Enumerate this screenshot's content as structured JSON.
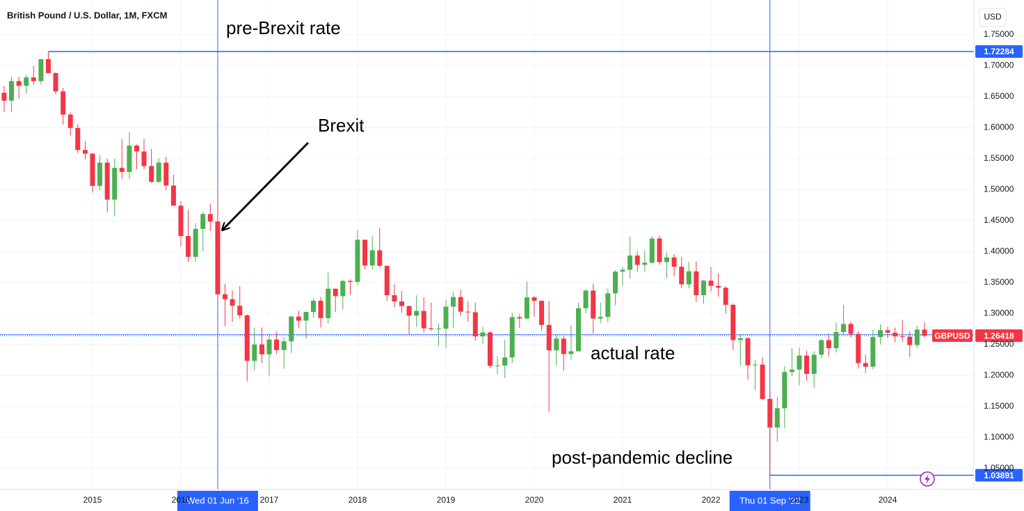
{
  "chart_data": {
    "type": "candlestick",
    "title": "British Pound / U.S. Dollar, 1M, FXCM",
    "currency": "USD",
    "symbol": "GBPUSD",
    "up_color": "#4caf50",
    "down_color": "#f23645",
    "line_color": "#2962ff",
    "grid": true,
    "xlim": [
      2013.953,
      2024.976
    ],
    "ylim": [
      1.016,
      1.806
    ],
    "xticks": [
      2015,
      2016,
      2017,
      2018,
      2019,
      2020,
      2021,
      2022,
      2023,
      2024
    ],
    "yticks": [
      {
        "value": 1.05,
        "label": "1.05000"
      },
      {
        "value": 1.1,
        "label": "1.10000"
      },
      {
        "value": 1.15,
        "label": "1.15000"
      },
      {
        "value": 1.2,
        "label": "1.20000"
      },
      {
        "value": 1.25,
        "label": "1.25000"
      },
      {
        "value": 1.3,
        "label": "1.30000"
      },
      {
        "value": 1.35,
        "label": "1.35000"
      },
      {
        "value": 1.4,
        "label": "1.40000"
      },
      {
        "value": 1.45,
        "label": "1.45000"
      },
      {
        "value": 1.5,
        "label": "1.50000"
      },
      {
        "value": 1.55,
        "label": "1.55000"
      },
      {
        "value": 1.6,
        "label": "1.60000"
      },
      {
        "value": 1.65,
        "label": "1.65000"
      },
      {
        "value": 1.7,
        "label": "1.70000"
      },
      {
        "value": 1.75,
        "label": "1.75000"
      }
    ],
    "x": [
      2014,
      2014.083,
      2014.167,
      2014.25,
      2014.333,
      2014.417,
      2014.5,
      2014.583,
      2014.667,
      2014.75,
      2014.833,
      2014.917,
      2015,
      2015.083,
      2015.167,
      2015.25,
      2015.333,
      2015.417,
      2015.5,
      2015.583,
      2015.667,
      2015.75,
      2015.833,
      2015.917,
      2016,
      2016.083,
      2016.167,
      2016.25,
      2016.333,
      2016.417,
      2016.5,
      2016.583,
      2016.667,
      2016.75,
      2016.833,
      2016.917,
      2017,
      2017.083,
      2017.167,
      2017.25,
      2017.333,
      2017.417,
      2017.5,
      2017.583,
      2017.667,
      2017.75,
      2017.833,
      2017.917,
      2018,
      2018.083,
      2018.167,
      2018.25,
      2018.333,
      2018.417,
      2018.5,
      2018.583,
      2018.667,
      2018.75,
      2018.833,
      2018.917,
      2019,
      2019.083,
      2019.167,
      2019.25,
      2019.333,
      2019.417,
      2019.5,
      2019.583,
      2019.667,
      2019.75,
      2019.833,
      2019.917,
      2020,
      2020.083,
      2020.167,
      2020.25,
      2020.333,
      2020.417,
      2020.5,
      2020.583,
      2020.667,
      2020.75,
      2020.833,
      2020.917,
      2021,
      2021.083,
      2021.167,
      2021.25,
      2021.333,
      2021.417,
      2021.5,
      2021.583,
      2021.667,
      2021.75,
      2021.833,
      2021.917,
      2022,
      2022.083,
      2022.167,
      2022.25,
      2022.333,
      2022.417,
      2022.5,
      2022.583,
      2022.667,
      2022.75,
      2022.833,
      2022.917,
      2023,
      2023.083,
      2023.167,
      2023.25,
      2023.333,
      2023.417,
      2023.5,
      2023.583,
      2023.667,
      2023.75,
      2023.833,
      2023.917,
      2024,
      2024.083,
      2024.167,
      2024.25,
      2024.333,
      2024.417
    ],
    "ohlc": [
      [
        1.6563,
        1.6668,
        1.6252,
        1.6435
      ],
      [
        1.6435,
        1.6823,
        1.625,
        1.6751
      ],
      [
        1.6751,
        1.6822,
        1.646,
        1.6675
      ],
      [
        1.6675,
        1.6853,
        1.655,
        1.681
      ],
      [
        1.681,
        1.6996,
        1.6692,
        1.675
      ],
      [
        1.675,
        1.7107,
        1.6693,
        1.7105
      ],
      [
        1.7105,
        1.72284,
        1.6875,
        1.688
      ],
      [
        1.688,
        1.6895,
        1.6533,
        1.6585
      ],
      [
        1.6585,
        1.6644,
        1.6051,
        1.621
      ],
      [
        1.621,
        1.6247,
        1.5873,
        1.5995
      ],
      [
        1.5995,
        1.606,
        1.5592,
        1.564
      ],
      [
        1.564,
        1.5785,
        1.5486,
        1.558
      ],
      [
        1.558,
        1.559,
        1.4952,
        1.506
      ],
      [
        1.506,
        1.5553,
        1.4989,
        1.5435
      ],
      [
        1.5435,
        1.5498,
        1.4633,
        1.4838
      ],
      [
        1.4838,
        1.5498,
        1.4565,
        1.535
      ],
      [
        1.535,
        1.5815,
        1.517,
        1.5285
      ],
      [
        1.5285,
        1.593,
        1.517,
        1.571
      ],
      [
        1.571,
        1.573,
        1.533,
        1.5615
      ],
      [
        1.5615,
        1.5818,
        1.533,
        1.538
      ],
      [
        1.538,
        1.5658,
        1.5106,
        1.5125
      ],
      [
        1.5125,
        1.5508,
        1.5107,
        1.5435
      ],
      [
        1.5435,
        1.5529,
        1.4987,
        1.5065
      ],
      [
        1.5065,
        1.5239,
        1.474,
        1.474
      ],
      [
        1.474,
        1.4815,
        1.4079,
        1.425
      ],
      [
        1.425,
        1.4669,
        1.3835,
        1.3915
      ],
      [
        1.3915,
        1.4459,
        1.3836,
        1.4365
      ],
      [
        1.4365,
        1.4638,
        1.4005,
        1.4605
      ],
      [
        1.4605,
        1.477,
        1.433,
        1.4485
      ],
      [
        1.4485,
        1.5018,
        1.3229,
        1.331
      ],
      [
        1.331,
        1.348,
        1.2797,
        1.323
      ],
      [
        1.323,
        1.3371,
        1.2865,
        1.3125
      ],
      [
        1.3125,
        1.3445,
        1.2915,
        1.297
      ],
      [
        1.297,
        1.2985,
        1.1906,
        1.2235
      ],
      [
        1.2235,
        1.2775,
        1.208,
        1.25
      ],
      [
        1.25,
        1.2775,
        1.22,
        1.234
      ],
      [
        1.234,
        1.2675,
        1.1985,
        1.258
      ],
      [
        1.258,
        1.2705,
        1.2345,
        1.241
      ],
      [
        1.241,
        1.2614,
        1.2109,
        1.255
      ],
      [
        1.255,
        1.2966,
        1.2365,
        1.295
      ],
      [
        1.295,
        1.3047,
        1.2768,
        1.2885
      ],
      [
        1.2885,
        1.303,
        1.259,
        1.3025
      ],
      [
        1.3025,
        1.3245,
        1.2932,
        1.3205
      ],
      [
        1.3205,
        1.3268,
        1.2774,
        1.2925
      ],
      [
        1.2925,
        1.3657,
        1.2841,
        1.34
      ],
      [
        1.34,
        1.3402,
        1.3027,
        1.328
      ],
      [
        1.328,
        1.3549,
        1.3062,
        1.3525
      ],
      [
        1.3525,
        1.355,
        1.33,
        1.351
      ],
      [
        1.351,
        1.4345,
        1.3458,
        1.419
      ],
      [
        1.419,
        1.4195,
        1.3711,
        1.3775
      ],
      [
        1.3775,
        1.4245,
        1.3711,
        1.402
      ],
      [
        1.402,
        1.4377,
        1.375,
        1.377
      ],
      [
        1.377,
        1.3773,
        1.3205,
        1.3295
      ],
      [
        1.3295,
        1.3472,
        1.31,
        1.3195
      ],
      [
        1.3195,
        1.3363,
        1.3011,
        1.312
      ],
      [
        1.312,
        1.3125,
        1.2661,
        1.2965
      ],
      [
        1.2965,
        1.3298,
        1.2786,
        1.304
      ],
      [
        1.304,
        1.3258,
        1.2696,
        1.276
      ],
      [
        1.276,
        1.3175,
        1.2723,
        1.2745
      ],
      [
        1.2745,
        1.284,
        1.2476,
        1.2755
      ],
      [
        1.2755,
        1.3217,
        1.2438,
        1.311
      ],
      [
        1.311,
        1.335,
        1.2773,
        1.3265
      ],
      [
        1.3265,
        1.3381,
        1.296,
        1.303
      ],
      [
        1.303,
        1.3197,
        1.2866,
        1.302
      ],
      [
        1.302,
        1.3176,
        1.2558,
        1.263
      ],
      [
        1.263,
        1.2783,
        1.2505,
        1.2695
      ],
      [
        1.2695,
        1.271,
        1.212,
        1.2155
      ],
      [
        1.2155,
        1.231,
        1.2015,
        1.216
      ],
      [
        1.216,
        1.258,
        1.1958,
        1.229
      ],
      [
        1.229,
        1.3012,
        1.2197,
        1.294
      ],
      [
        1.294,
        1.2985,
        1.2765,
        1.292
      ],
      [
        1.292,
        1.3515,
        1.2902,
        1.326
      ],
      [
        1.326,
        1.3285,
        1.2952,
        1.3205
      ],
      [
        1.3205,
        1.321,
        1.2725,
        1.2815
      ],
      [
        1.2815,
        1.32,
        1.141,
        1.2405
      ],
      [
        1.2405,
        1.265,
        1.2165,
        1.2595
      ],
      [
        1.2595,
        1.2648,
        1.2075,
        1.2345
      ],
      [
        1.2345,
        1.2813,
        1.2252,
        1.239
      ],
      [
        1.239,
        1.317,
        1.239,
        1.3085
      ],
      [
        1.3085,
        1.3395,
        1.3005,
        1.337
      ],
      [
        1.337,
        1.348,
        1.2675,
        1.2918
      ],
      [
        1.2918,
        1.3175,
        1.2845,
        1.2945
      ],
      [
        1.2945,
        1.3398,
        1.2855,
        1.3325
      ],
      [
        1.3325,
        1.37,
        1.3135,
        1.3675
      ],
      [
        1.3675,
        1.3755,
        1.345,
        1.3705
      ],
      [
        1.3705,
        1.424,
        1.3565,
        1.3935
      ],
      [
        1.3935,
        1.4,
        1.367,
        1.3785
      ],
      [
        1.3785,
        1.401,
        1.367,
        1.382
      ],
      [
        1.382,
        1.425,
        1.38,
        1.421
      ],
      [
        1.421,
        1.425,
        1.3785,
        1.383
      ],
      [
        1.383,
        1.3985,
        1.357,
        1.3905
      ],
      [
        1.3905,
        1.396,
        1.36,
        1.3755
      ],
      [
        1.3755,
        1.391,
        1.341,
        1.347
      ],
      [
        1.347,
        1.3835,
        1.341,
        1.368
      ],
      [
        1.368,
        1.3835,
        1.319,
        1.3295
      ],
      [
        1.3295,
        1.3545,
        1.316,
        1.353
      ],
      [
        1.353,
        1.375,
        1.3355,
        1.3445
      ],
      [
        1.3445,
        1.3645,
        1.327,
        1.3415
      ],
      [
        1.3415,
        1.344,
        1.3,
        1.314
      ],
      [
        1.314,
        1.3165,
        1.241,
        1.257
      ],
      [
        1.257,
        1.2665,
        1.2155,
        1.26
      ],
      [
        1.26,
        1.262,
        1.1935,
        1.2165
      ],
      [
        1.2165,
        1.2245,
        1.176,
        1.2175
      ],
      [
        1.2175,
        1.2295,
        1.16,
        1.162
      ],
      [
        1.162,
        1.174,
        1.03891,
        1.116
      ],
      [
        1.116,
        1.165,
        1.0925,
        1.147
      ],
      [
        1.147,
        1.215,
        1.1145,
        1.2055
      ],
      [
        1.2055,
        1.2445,
        1.199,
        1.2095
      ],
      [
        1.2095,
        1.245,
        1.184,
        1.232
      ],
      [
        1.232,
        1.24,
        1.1915,
        1.2025
      ],
      [
        1.2025,
        1.239,
        1.18,
        1.2335
      ],
      [
        1.2335,
        1.2585,
        1.2275,
        1.257
      ],
      [
        1.257,
        1.268,
        1.2305,
        1.244
      ],
      [
        1.244,
        1.285,
        1.237,
        1.27
      ],
      [
        1.27,
        1.314,
        1.266,
        1.283
      ],
      [
        1.283,
        1.287,
        1.2615,
        1.267
      ],
      [
        1.267,
        1.2715,
        1.211,
        1.22
      ],
      [
        1.22,
        1.2335,
        1.2035,
        1.214
      ],
      [
        1.214,
        1.2735,
        1.21,
        1.262
      ],
      [
        1.262,
        1.2825,
        1.25,
        1.273
      ],
      [
        1.273,
        1.2785,
        1.26,
        1.269
      ],
      [
        1.269,
        1.2773,
        1.2535,
        1.263
      ],
      [
        1.263,
        1.2895,
        1.254,
        1.2625
      ],
      [
        1.2625,
        1.271,
        1.23,
        1.249
      ],
      [
        1.249,
        1.28,
        1.2445,
        1.274
      ],
      [
        1.274,
        1.286,
        1.261,
        1.26418
      ]
    ],
    "horizontal_lines": [
      {
        "value": 1.72284,
        "x_start": 2014.5
      },
      {
        "value": 1.03891,
        "x_start": 2022.667
      }
    ],
    "price_line": {
      "value": 1.26418
    },
    "vertical_lines": [
      {
        "x": 2016.417,
        "label": "Wed 01 Jun '16"
      },
      {
        "x": 2022.667,
        "label": "Thu 01 Sep '22"
      }
    ],
    "annotations": [
      "pre-Brexit rate",
      "Brexit",
      "actual rate",
      "post-pandemic decline"
    ]
  }
}
